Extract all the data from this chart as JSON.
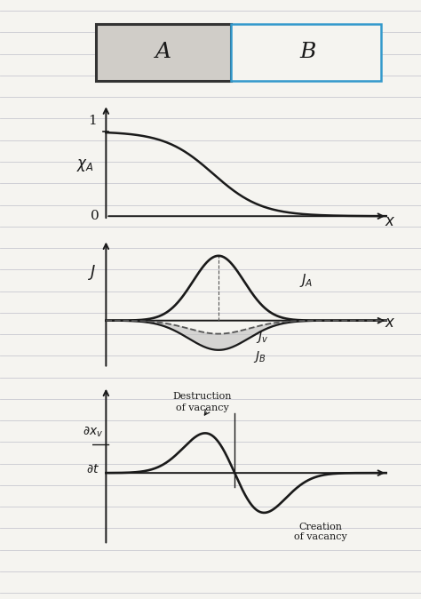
{
  "bg_color": "#f5f4f0",
  "line_color": "#c8c8d0",
  "curve_color": "#1a1a1a",
  "box_A_face": "#d0cdc8",
  "box_A_edge": "#333333",
  "box_B_edge": "#3399cc",
  "box_B_face": "#f5f4f0",
  "label_xA": "χ_A",
  "label_x": "x",
  "label_J": "J",
  "label_JA": "J_A",
  "label_Jv": "J_v",
  "label_JB": "J_B",
  "label_destruction": "Destruction\nof vacancy",
  "label_creation": "Creation\nof vacancy"
}
